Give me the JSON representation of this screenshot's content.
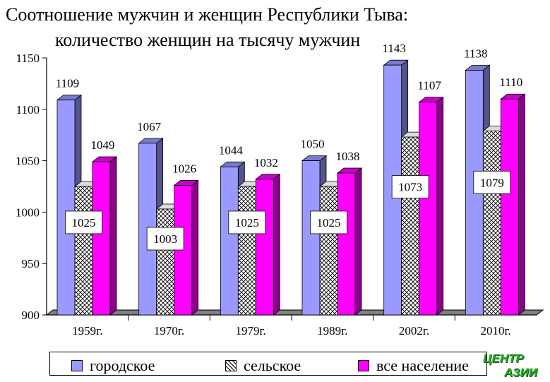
{
  "chart_data": {
    "type": "bar",
    "title": "Соотношение мужчин и женщин Республики Тыва:",
    "subtitle": "количество женщин на тысячу мужчин",
    "categories": [
      "1959г.",
      "1970г.",
      "1979г.",
      "1989г.",
      "2002г.",
      "2010г."
    ],
    "series": [
      {
        "name": "городское",
        "values": [
          1109,
          1067,
          1044,
          1050,
          1143,
          1138
        ],
        "color": "#9999ff"
      },
      {
        "name": "сельское",
        "values": [
          1025,
          1003,
          1025,
          1025,
          1073,
          1079
        ],
        "color": "#ffffff",
        "pattern": "crosshatch"
      },
      {
        "name": "все население",
        "values": [
          1049,
          1026,
          1032,
          1038,
          1107,
          1110
        ],
        "color": "#ff00ff"
      }
    ],
    "ylim": [
      900,
      1150
    ],
    "yticks": [
      900,
      950,
      1000,
      1050,
      1100,
      1150
    ],
    "legend_position": "bottom",
    "grid": false
  },
  "watermark": {
    "line1": "ЦЕНТР",
    "line2": "АЗИИ"
  }
}
